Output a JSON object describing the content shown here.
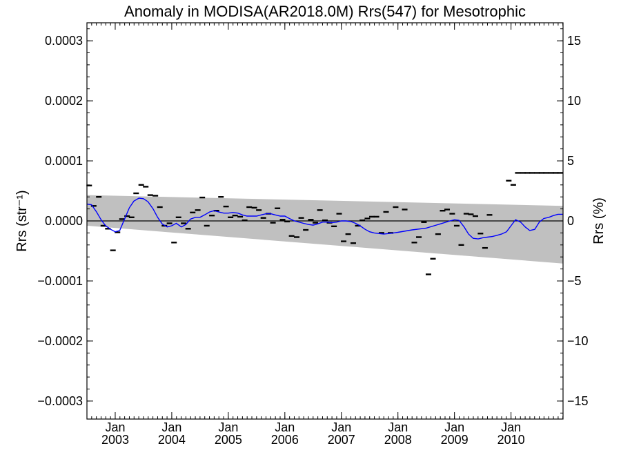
{
  "chart_data": {
    "type": "line",
    "title": "Anomaly in MODISA(AR2018.0M) Rrs(547) for Mesotrophic",
    "ylabel_left": "Rrs (str⁻¹)",
    "ylabel_right": "Rrs (%)",
    "xlim": [
      2002.5,
      2010.92
    ],
    "ylim": [
      -0.00033,
      0.00033
    ],
    "ylim_right": [
      -16.5,
      16.5
    ],
    "grid": false,
    "y_ticks": [
      0.0003,
      0.0002,
      0.0001,
      0.0,
      -0.0001,
      -0.0002,
      -0.0003
    ],
    "y_tick_labels": [
      "0.0003",
      "0.0002",
      "0.0001",
      "0.0000",
      "−0.0001",
      "−0.0002",
      "−0.0003"
    ],
    "y_ticks_right": [
      15,
      10,
      5,
      0,
      -5,
      -10,
      -15
    ],
    "y_tick_labels_right": [
      "15",
      "10",
      "5",
      "0",
      "−5",
      "−10",
      "−15"
    ],
    "x_ticks": [
      2003.0,
      2004.0,
      2005.0,
      2006.0,
      2007.0,
      2008.0,
      2009.0,
      2010.0
    ],
    "x_tick_labels_top": [
      "Jan",
      "Jan",
      "Jan",
      "Jan",
      "Jan",
      "Jan",
      "Jan",
      "Jan"
    ],
    "x_tick_labels_bottom": [
      "2003",
      "2004",
      "2005",
      "2006",
      "2007",
      "2008",
      "2009",
      "2010"
    ],
    "zero_line": 0.0,
    "uncertainty_band": {
      "color": "#c0c0c0",
      "x": [
        2002.5,
        2010.92
      ],
      "upper": [
        4.3e-05,
        2.5e-05
      ],
      "lower": [
        -8e-06,
        -7.1e-05
      ]
    },
    "monthly_points": {
      "name": "monthly anomaly",
      "color": "#000000",
      "x": [
        2002.54,
        2002.62,
        2002.71,
        2002.79,
        2002.87,
        2002.96,
        2003.04,
        2003.12,
        2003.21,
        2003.29,
        2003.37,
        2003.46,
        2003.54,
        2003.62,
        2003.71,
        2003.79,
        2003.87,
        2003.96,
        2004.04,
        2004.12,
        2004.21,
        2004.29,
        2004.37,
        2004.46,
        2004.54,
        2004.62,
        2004.71,
        2004.79,
        2004.87,
        2004.96,
        2005.04,
        2005.12,
        2005.21,
        2005.29,
        2005.37,
        2005.46,
        2005.54,
        2005.62,
        2005.71,
        2005.79,
        2005.87,
        2005.96,
        2006.04,
        2006.12,
        2006.21,
        2006.29,
        2006.37,
        2006.46,
        2006.54,
        2006.62,
        2006.71,
        2006.79,
        2006.87,
        2006.96,
        2007.04,
        2007.12,
        2007.21,
        2007.29,
        2007.37,
        2007.46,
        2007.54,
        2007.62,
        2007.71,
        2007.79,
        2007.87,
        2007.96,
        2008.12,
        2008.29,
        2008.37,
        2008.46,
        2008.54,
        2008.62,
        2008.71,
        2008.79,
        2008.87,
        2008.96,
        2009.04,
        2009.12,
        2009.21,
        2009.29,
        2009.37,
        2009.46,
        2009.54,
        2009.62,
        2009.96,
        2010.04,
        2010.12,
        2010.21,
        2010.29,
        2010.37,
        2010.46,
        2010.54,
        2010.62,
        2010.71,
        2010.79,
        2010.87
      ],
      "values": [
        5.9e-05,
        2.5e-05,
        4e-05,
        -8e-06,
        -1.3e-05,
        -4.9e-05,
        -1.9e-05,
        3e-06,
        8e-06,
        6e-06,
        4.6e-05,
        6e-05,
        5.7e-05,
        4.3e-05,
        4.2e-05,
        2.3e-05,
        -8e-06,
        -4e-06,
        -3.6e-05,
        6e-06,
        -4e-06,
        -1.3e-05,
        1.4e-05,
        1.8e-05,
        3.9e-05,
        -8e-06,
        9e-06,
        1.7e-05,
        4e-05,
        2.4e-05,
        6e-06,
        9e-06,
        7e-06,
        1e-06,
        2.3e-05,
        2.2e-05,
        1.8e-05,
        5e-06,
        1.2e-05,
        -3e-06,
        2.1e-05,
        2e-06,
        -1e-06,
        -2.5e-05,
        -2.7e-05,
        5e-06,
        -1.5e-05,
        2e-06,
        -3e-06,
        1.8e-05,
        1e-06,
        -3e-06,
        -9e-06,
        1.2e-05,
        -3.4e-05,
        -2.2e-05,
        -3.7e-05,
        -8e-06,
        1e-06,
        4e-06,
        7e-06,
        7e-06,
        -2e-05,
        1.5e-05,
        -2e-05,
        2.3e-05,
        1.9e-05,
        -3.6e-05,
        -2.7e-05,
        -2e-06,
        -8.9e-05,
        -6.3e-05,
        -2.2e-05,
        1.7e-05,
        1.9e-05,
        1.2e-05,
        -8e-06,
        -4e-05,
        1.2e-05,
        1.1e-05,
        8e-06,
        -2.1e-05,
        -4.5e-05,
        1e-05,
        6.7e-05,
        6e-05,
        8e-05,
        8e-05,
        8e-05,
        8e-05,
        8e-05,
        8e-05,
        8e-05,
        8e-05,
        8e-05,
        8e-05
      ]
    },
    "smoothed": {
      "name": "running mean",
      "color": "#0000ff",
      "x": [
        2002.5,
        2002.58,
        2002.67,
        2002.75,
        2002.83,
        2002.92,
        2003.0,
        2003.08,
        2003.17,
        2003.25,
        2003.33,
        2003.42,
        2003.5,
        2003.58,
        2003.67,
        2003.75,
        2003.83,
        2003.92,
        2004.0,
        2004.08,
        2004.17,
        2004.25,
        2004.33,
        2004.42,
        2004.5,
        2004.58,
        2004.67,
        2004.75,
        2004.83,
        2004.92,
        2005.0,
        2005.08,
        2005.17,
        2005.25,
        2005.33,
        2005.42,
        2005.5,
        2005.58,
        2005.67,
        2005.75,
        2005.83,
        2005.92,
        2006.0,
        2006.08,
        2006.17,
        2006.25,
        2006.33,
        2006.42,
        2006.5,
        2006.58,
        2006.67,
        2006.75,
        2006.83,
        2006.92,
        2007.0,
        2007.08,
        2007.17,
        2007.25,
        2007.33,
        2007.42,
        2007.5,
        2007.58,
        2007.67,
        2007.75,
        2007.83,
        2007.92,
        2008.0,
        2008.25,
        2008.5,
        2008.75,
        2008.92,
        2009.0,
        2009.08,
        2009.17,
        2009.25,
        2009.33,
        2009.42,
        2009.5,
        2009.58,
        2009.67,
        2009.75,
        2009.83,
        2009.92,
        2010.0,
        2010.08,
        2010.17,
        2010.25,
        2010.33,
        2010.42,
        2010.5,
        2010.58,
        2010.67,
        2010.75,
        2010.83,
        2010.92
      ],
      "values": [
        2.8e-05,
        2.7e-05,
        1.5e-05,
        2e-06,
        -8e-06,
        -1.4e-05,
        -1.8e-05,
        -1.6e-05,
        4e-06,
        2.2e-05,
        3.3e-05,
        3.8e-05,
        3.7e-05,
        3.2e-05,
        2e-05,
        6e-06,
        -5e-06,
        -1e-05,
        -8e-06,
        -4e-06,
        -1e-05,
        -6e-06,
        3e-06,
        6e-06,
        6e-06,
        1e-05,
        1.5e-05,
        1.7e-05,
        1.5e-05,
        1.3e-05,
        1.3e-05,
        1.4e-05,
        1.3e-05,
        1e-05,
        8e-06,
        8e-06,
        8e-06,
        1e-05,
        1.2e-05,
        1.2e-05,
        1e-05,
        8e-06,
        8e-06,
        4e-06,
        0.0,
        -2e-06,
        -4e-06,
        -6e-06,
        -7e-06,
        -5e-06,
        -2e-06,
        -2e-06,
        -3e-06,
        -2e-06,
        0.0,
        0.0,
        -1e-06,
        -4e-06,
        -8e-06,
        -1.4e-05,
        -1.8e-05,
        -2e-05,
        -2.1e-05,
        -2.2e-05,
        -2.1e-05,
        -2e-05,
        -1.9e-05,
        -1.5e-05,
        -1.2e-05,
        -5e-06,
        0.0,
        2e-06,
        1e-06,
        -1e-05,
        -2.2e-05,
        -2.9e-05,
        -3e-05,
        -2.8e-05,
        -2.7e-05,
        -2.6e-05,
        -2.4e-05,
        -2.2e-05,
        -1.8e-05,
        -8e-06,
        2e-06,
        -2e-06,
        -1e-05,
        -1.6e-05,
        -1.4e-05,
        -2e-06,
        4e-06,
        6e-06,
        9e-06,
        1.1e-05,
        1.1e-05
      ]
    }
  }
}
